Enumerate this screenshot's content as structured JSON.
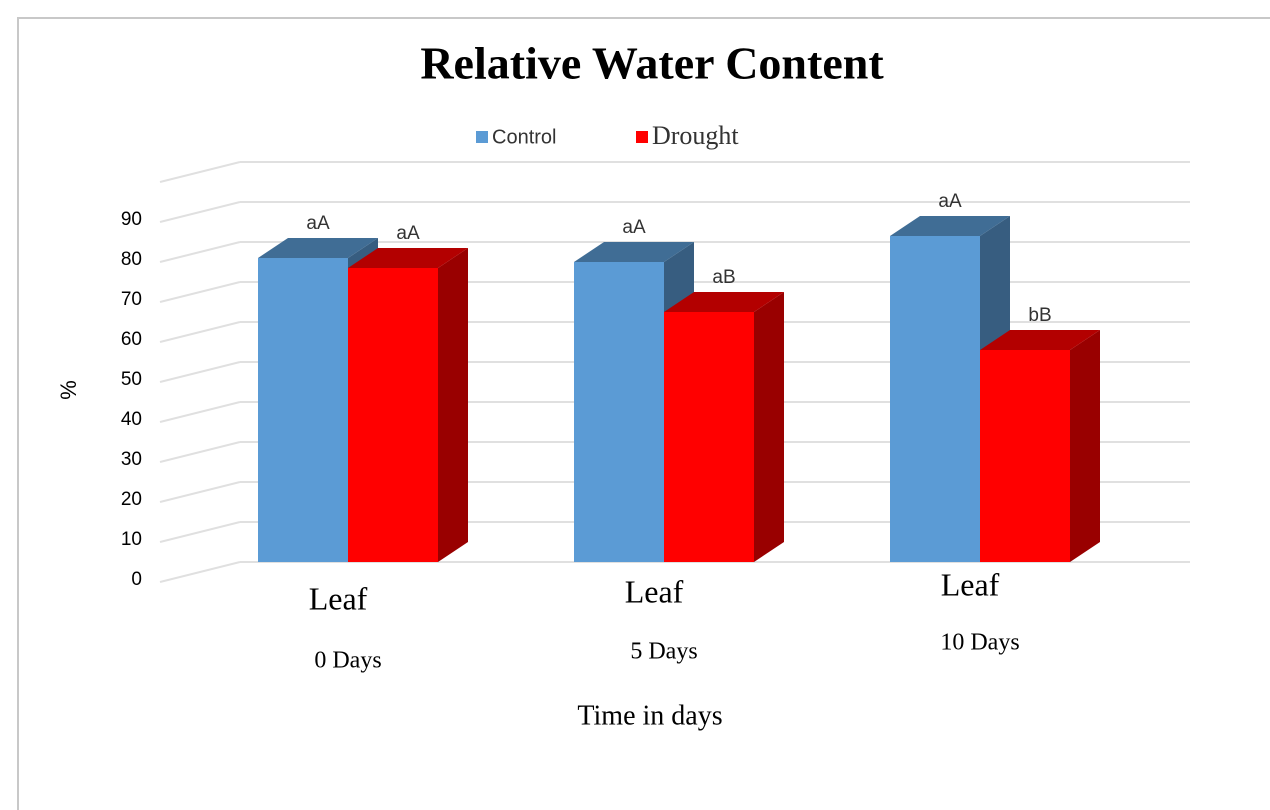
{
  "chart_data": {
    "type": "bar3d",
    "title": "Relative Water Content",
    "categories": [
      "Leaf",
      "Leaf",
      "Leaf"
    ],
    "subcategories": [
      "0 Days",
      "5 Days",
      "10 Days"
    ],
    "x_label": "Time in days",
    "y_label": "%",
    "series": [
      {
        "name": "Control",
        "color": "#5b9bd5",
        "values": [
          76,
          75,
          81.5
        ],
        "letters": [
          "aA",
          "aA",
          "aA"
        ]
      },
      {
        "name": "Drought",
        "color": "#ff0000",
        "values": [
          73.5,
          62.5,
          53
        ],
        "letters": [
          "aA",
          "aB",
          "bB"
        ]
      }
    ],
    "ylim": [
      0,
      100
    ],
    "yticks": [
      0,
      10,
      20,
      30,
      40,
      50,
      60,
      70,
      80,
      90
    ],
    "grid": true,
    "legend": "top"
  }
}
